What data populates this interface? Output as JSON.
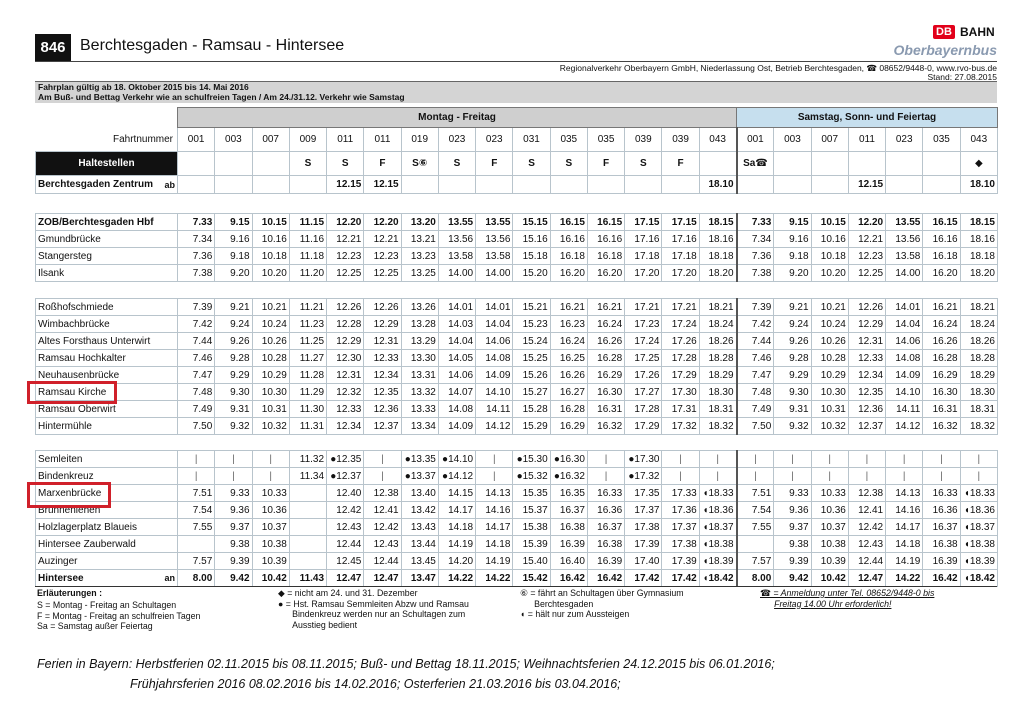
{
  "header": {
    "line_number": "846",
    "title": "Berchtesgaden - Ramsau - Hintersee",
    "logo_db": "DB",
    "logo_bahn": "BAHN",
    "brand": "Oberbayernbus",
    "company": "Regionalverkehr Oberbayern GmbH, Niederlassung Ost, Betrieb Berchtesgaden, ☎ 08652/9448-0, www.rvo-bus.de",
    "stand": "Stand: 27.08.2015",
    "validity": "Fahrplan gültig ab 18. Oktober 2015 bis 14. Mai 2016",
    "special": "Am Buß- und Bettag Verkehr wie an schulfreien Tagen / Am 24./31.12. Verkehr wie Samstag"
  },
  "table": {
    "label_fahrtnummer": "Fahrtnummer",
    "label_haltestellen": "Haltestellen",
    "groups": [
      {
        "label": "Montag - Freitag",
        "fahrtnummern": [
          "001",
          "003",
          "007",
          "009",
          "011",
          "011",
          "019",
          "023",
          "023",
          "031",
          "035",
          "035",
          "039",
          "039",
          "043"
        ],
        "verkehrstage": [
          null,
          null,
          null,
          "S",
          "S",
          "F",
          "S⑥",
          "S",
          "F",
          "S",
          "S",
          "F",
          "S",
          "F",
          null
        ]
      },
      {
        "label": "Samstag, Sonn- und Feiertag",
        "fahrtnummern": [
          "001",
          "003",
          "007",
          "011",
          "023",
          "035",
          "043"
        ],
        "verkehrstage": [
          "Sa☎",
          null,
          null,
          null,
          null,
          null,
          "◆"
        ]
      }
    ],
    "sections": [
      [
        {
          "name": "Berchtesgaden Zentrum",
          "mode": "ab",
          "bold": true,
          "times": [
            null,
            null,
            null,
            null,
            "12.15",
            "12.15",
            null,
            null,
            null,
            null,
            null,
            null,
            null,
            null,
            "18.10",
            null,
            null,
            null,
            "12.15",
            null,
            null,
            "18.10"
          ]
        }
      ],
      [
        {
          "name": "ZOB/Berchtesgaden Hbf",
          "bold": true,
          "times": [
            "7.33",
            "9.15",
            "10.15",
            "11.15",
            "12.20",
            "12.20",
            "13.20",
            "13.55",
            "13.55",
            "15.15",
            "16.15",
            "16.15",
            "17.15",
            "17.15",
            "18.15",
            "7.33",
            "9.15",
            "10.15",
            "12.20",
            "13.55",
            "16.15",
            "18.15"
          ]
        },
        {
          "name": "Gmundbrücke",
          "times": [
            "7.34",
            "9.16",
            "10.16",
            "11.16",
            "12.21",
            "12.21",
            "13.21",
            "13.56",
            "13.56",
            "15.16",
            "16.16",
            "16.16",
            "17.16",
            "17.16",
            "18.16",
            "7.34",
            "9.16",
            "10.16",
            "12.21",
            "13.56",
            "16.16",
            "18.16"
          ]
        },
        {
          "name": "Stangersteg",
          "times": [
            "7.36",
            "9.18",
            "10.18",
            "11.18",
            "12.23",
            "12.23",
            "13.23",
            "13.58",
            "13.58",
            "15.18",
            "16.18",
            "16.18",
            "17.18",
            "17.18",
            "18.18",
            "7.36",
            "9.18",
            "10.18",
            "12.23",
            "13.58",
            "16.18",
            "18.18"
          ]
        },
        {
          "name": "Ilsank",
          "times": [
            "7.38",
            "9.20",
            "10.20",
            "11.20",
            "12.25",
            "12.25",
            "13.25",
            "14.00",
            "14.00",
            "15.20",
            "16.20",
            "16.20",
            "17.20",
            "17.20",
            "18.20",
            "7.38",
            "9.20",
            "10.20",
            "12.25",
            "14.00",
            "16.20",
            "18.20"
          ]
        }
      ],
      [
        {
          "name": "Roßhofschmiede",
          "times": [
            "7.39",
            "9.21",
            "10.21",
            "11.21",
            "12.26",
            "12.26",
            "13.26",
            "14.01",
            "14.01",
            "15.21",
            "16.21",
            "16.21",
            "17.21",
            "17.21",
            "18.21",
            "7.39",
            "9.21",
            "10.21",
            "12.26",
            "14.01",
            "16.21",
            "18.21"
          ]
        },
        {
          "name": "Wimbachbrücke",
          "times": [
            "7.42",
            "9.24",
            "10.24",
            "11.23",
            "12.28",
            "12.29",
            "13.28",
            "14.03",
            "14.04",
            "15.23",
            "16.23",
            "16.24",
            "17.23",
            "17.24",
            "18.24",
            "7.42",
            "9.24",
            "10.24",
            "12.29",
            "14.04",
            "16.24",
            "18.24"
          ]
        },
        {
          "name": "Altes Forsthaus Unterwirt",
          "times": [
            "7.44",
            "9.26",
            "10.26",
            "11.25",
            "12.29",
            "12.31",
            "13.29",
            "14.04",
            "14.06",
            "15.24",
            "16.24",
            "16.26",
            "17.24",
            "17.26",
            "18.26",
            "7.44",
            "9.26",
            "10.26",
            "12.31",
            "14.06",
            "16.26",
            "18.26"
          ]
        },
        {
          "name": "Ramsau Hochkalter",
          "times": [
            "7.46",
            "9.28",
            "10.28",
            "11.27",
            "12.30",
            "12.33",
            "13.30",
            "14.05",
            "14.08",
            "15.25",
            "16.25",
            "16.28",
            "17.25",
            "17.28",
            "18.28",
            "7.46",
            "9.28",
            "10.28",
            "12.33",
            "14.08",
            "16.28",
            "18.28"
          ]
        },
        {
          "name": "Neuhausenbrücke",
          "times": [
            "7.47",
            "9.29",
            "10.29",
            "11.28",
            "12.31",
            "12.34",
            "13.31",
            "14.06",
            "14.09",
            "15.26",
            "16.26",
            "16.29",
            "17.26",
            "17.29",
            "18.29",
            "7.47",
            "9.29",
            "10.29",
            "12.34",
            "14.09",
            "16.29",
            "18.29"
          ]
        },
        {
          "name": "Ramsau Kirche",
          "times": [
            "7.48",
            "9.30",
            "10.30",
            "11.29",
            "12.32",
            "12.35",
            "13.32",
            "14.07",
            "14.10",
            "15.27",
            "16.27",
            "16.30",
            "17.27",
            "17.30",
            "18.30",
            "7.48",
            "9.30",
            "10.30",
            "12.35",
            "14.10",
            "16.30",
            "18.30"
          ]
        },
        {
          "name": "Ramsau Oberwirt",
          "times": [
            "7.49",
            "9.31",
            "10.31",
            "11.30",
            "12.33",
            "12.36",
            "13.33",
            "14.08",
            "14.11",
            "15.28",
            "16.28",
            "16.31",
            "17.28",
            "17.31",
            "18.31",
            "7.49",
            "9.31",
            "10.31",
            "12.36",
            "14.11",
            "16.31",
            "18.31"
          ]
        },
        {
          "name": "Hintermühle",
          "times": [
            "7.50",
            "9.32",
            "10.32",
            "11.31",
            "12.34",
            "12.37",
            "13.34",
            "14.09",
            "14.12",
            "15.29",
            "16.29",
            "16.32",
            "17.29",
            "17.32",
            "18.32",
            "7.50",
            "9.32",
            "10.32",
            "12.37",
            "14.12",
            "16.32",
            "18.32"
          ]
        }
      ],
      [
        {
          "name": "Semleiten",
          "times": [
            "|",
            "|",
            "|",
            "11.32",
            "●12.35",
            "|",
            "●13.35",
            "●14.10",
            "|",
            "●15.30",
            "●16.30",
            "|",
            "●17.30",
            "|",
            "|",
            "|",
            "|",
            "|",
            "|",
            "|",
            "|",
            "|"
          ]
        },
        {
          "name": "Bindenkreuz",
          "times": [
            "|",
            "|",
            "|",
            "11.34",
            "●12.37",
            "|",
            "●13.37",
            "●14.12",
            "|",
            "●15.32",
            "●16.32",
            "|",
            "●17.32",
            "|",
            "|",
            "|",
            "|",
            "|",
            "|",
            "|",
            "|",
            "|"
          ]
        },
        {
          "name": "Marxenbrücke",
          "times": [
            "7.51",
            "9.33",
            "10.33",
            null,
            "12.40",
            "12.38",
            "13.40",
            "14.15",
            "14.13",
            "15.35",
            "16.35",
            "16.33",
            "17.35",
            "17.33",
            "◖18.33",
            "7.51",
            "9.33",
            "10.33",
            "12.38",
            "14.13",
            "16.33",
            "◖18.33"
          ]
        },
        {
          "name": "Brunnenlehen",
          "times": [
            "7.54",
            "9.36",
            "10.36",
            null,
            "12.42",
            "12.41",
            "13.42",
            "14.17",
            "14.16",
            "15.37",
            "16.37",
            "16.36",
            "17.37",
            "17.36",
            "◖18.36",
            "7.54",
            "9.36",
            "10.36",
            "12.41",
            "14.16",
            "16.36",
            "◖18.36"
          ]
        },
        {
          "name": "Holzlagerplatz Blaueis",
          "times": [
            "7.55",
            "9.37",
            "10.37",
            null,
            "12.43",
            "12.42",
            "13.43",
            "14.18",
            "14.17",
            "15.38",
            "16.38",
            "16.37",
            "17.38",
            "17.37",
            "◖18.37",
            "7.55",
            "9.37",
            "10.37",
            "12.42",
            "14.17",
            "16.37",
            "◖18.37"
          ]
        },
        {
          "name": "Hintersee Zauberwald",
          "times": [
            null,
            "9.38",
            "10.38",
            null,
            "12.44",
            "12.43",
            "13.44",
            "14.19",
            "14.18",
            "15.39",
            "16.39",
            "16.38",
            "17.39",
            "17.38",
            "◖18.38",
            null,
            "9.38",
            "10.38",
            "12.43",
            "14.18",
            "16.38",
            "◖18.38"
          ]
        },
        {
          "name": "Auzinger",
          "times": [
            "7.57",
            "9.39",
            "10.39",
            null,
            "12.45",
            "12.44",
            "13.45",
            "14.20",
            "14.19",
            "15.40",
            "16.40",
            "16.39",
            "17.40",
            "17.39",
            "◖18.39",
            "7.57",
            "9.39",
            "10.39",
            "12.44",
            "14.19",
            "16.39",
            "◖18.39"
          ]
        },
        {
          "name": "Hintersee",
          "mode": "an",
          "bold": true,
          "times": [
            "8.00",
            "9.42",
            "10.42",
            "11.43",
            "12.47",
            "12.47",
            "13.47",
            "14.22",
            "14.22",
            "15.42",
            "16.42",
            "16.42",
            "17.42",
            "17.42",
            "◖18.42",
            "8.00",
            "9.42",
            "10.42",
            "12.47",
            "14.22",
            "16.42",
            "◖18.42"
          ]
        }
      ]
    ]
  },
  "legend": {
    "title": "Erläuterungen :",
    "columns": [
      [
        "S = Montag - Freitag an Schultagen",
        "F = Montag - Freitag an schulfreien Tagen",
        "Sa = Samstag außer Feiertag"
      ],
      [
        "◆ = nicht am 24. und 31. Dezember",
        "● = Hst. Ramsau Semmleiten Abzw und Ramsau Bindenkreuz werden nur an Schultagen zum Ausstieg bedient"
      ],
      [
        "⑥ = fährt an Schultagen über Gymnasium Berchtesgaden",
        "◖ = hält nur zum Aussteigen"
      ],
      [
        "☎ = Anmeldung unter Tel. 08652/9448-0 bis Freitag 14.00 Uhr erforderlich!"
      ]
    ]
  },
  "holidays": [
    "Ferien in Bayern: Herbstferien 02.11.2015 bis 08.11.2015; Buß- und Bettag 18.11.2015; Weihnachtsferien 24.12.2015 bis 06.01.2016;",
    "Frühjahrsferien 2016 08.02.2016 bis 14.02.2016; Osterferien 21.03.2016 bis 03.04.2016;"
  ]
}
